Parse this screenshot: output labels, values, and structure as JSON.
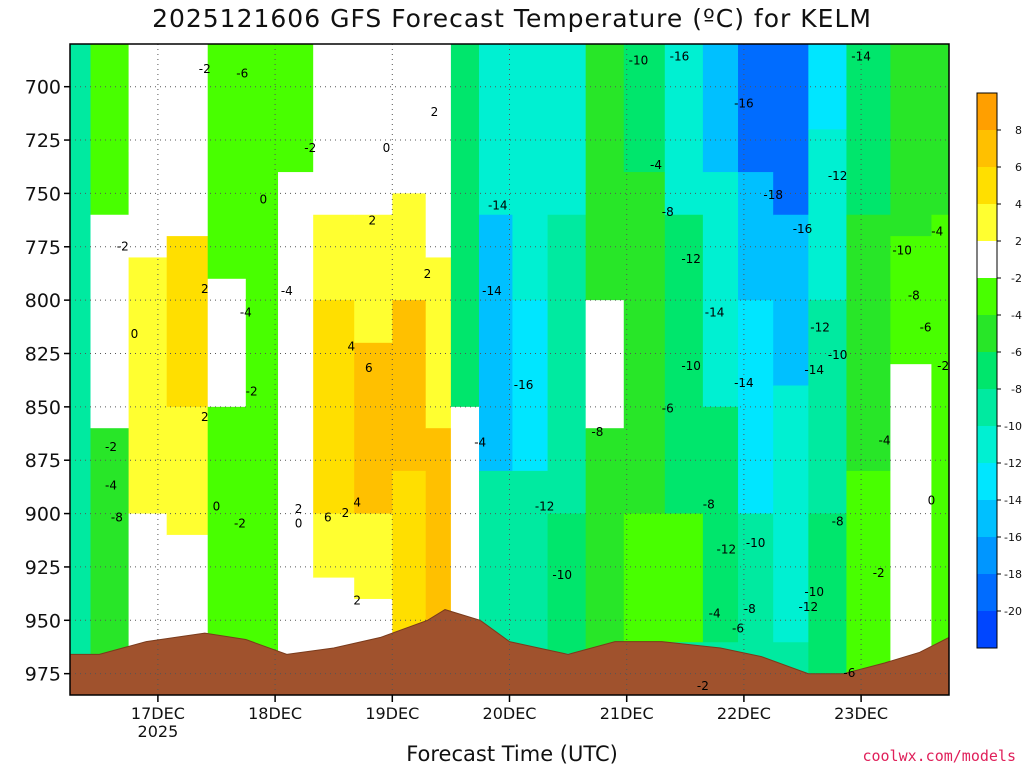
{
  "chart_data": {
    "type": "heatmap",
    "title": "2025121606 GFS Forecast Temperature (ºC) for KELM",
    "xlabel": "Forecast Time (UTC)",
    "ylabel": "Pressure (hPa)",
    "credit": "coolwx.com/models",
    "x_ticks": [
      "17DEC",
      "18DEC",
      "19DEC",
      "20DEC",
      "21DEC",
      "22DEC",
      "23DEC"
    ],
    "x_year_label": "2025",
    "x_range_days": [
      16.25,
      23.75
    ],
    "y_ticks": [
      700,
      725,
      750,
      775,
      800,
      825,
      850,
      875,
      900,
      925,
      950,
      975
    ],
    "y_range": [
      680,
      985
    ],
    "colorbar": {
      "labels": [
        "8",
        "6",
        "4",
        "2",
        "-2",
        "-4",
        "-6",
        "-8",
        "-10",
        "-12",
        "-14",
        "-16",
        "-18",
        "-20"
      ],
      "bins": [
        {
          "color": "#ff9f00"
        },
        {
          "color": "#ffc000"
        },
        {
          "color": "#ffdf00"
        },
        {
          "color": "#ffff30"
        },
        {
          "color": "#ffffff"
        },
        {
          "color": "#48ff00"
        },
        {
          "color": "#28e628"
        },
        {
          "color": "#00e66c"
        },
        {
          "color": "#00eaa0"
        },
        {
          "color": "#00f0d2"
        },
        {
          "color": "#00e6ff"
        },
        {
          "color": "#00c0ff"
        },
        {
          "color": "#0096ff"
        },
        {
          "color": "#006cff"
        },
        {
          "color": "#0046ff"
        }
      ]
    },
    "columns": [
      {
        "t": 16.25,
        "bands": [
          [
            680,
            985,
            -10
          ]
        ]
      },
      {
        "t": 16.6,
        "bands": [
          [
            680,
            760,
            -4
          ],
          [
            760,
            860,
            -1
          ],
          [
            860,
            985,
            -6
          ]
        ]
      },
      {
        "t": 16.9,
        "bands": [
          [
            680,
            730,
            -1
          ],
          [
            730,
            780,
            1
          ],
          [
            780,
            900,
            3
          ],
          [
            900,
            985,
            -2
          ]
        ]
      },
      {
        "t": 17.25,
        "bands": [
          [
            680,
            740,
            0
          ],
          [
            740,
            770,
            1
          ],
          [
            770,
            850,
            5
          ],
          [
            850,
            910,
            2
          ],
          [
            910,
            985,
            -1
          ]
        ]
      },
      {
        "t": 17.6,
        "bands": [
          [
            680,
            790,
            -3
          ],
          [
            790,
            850,
            1
          ],
          [
            850,
            985,
            -3
          ]
        ]
      },
      {
        "t": 17.9,
        "bands": [
          [
            680,
            985,
            -3
          ]
        ]
      },
      {
        "t": 18.15,
        "bands": [
          [
            680,
            740,
            -3
          ],
          [
            740,
            810,
            -1
          ],
          [
            810,
            900,
            1
          ],
          [
            900,
            985,
            -1
          ]
        ]
      },
      {
        "t": 18.5,
        "bands": [
          [
            680,
            760,
            -1
          ],
          [
            760,
            800,
            2
          ],
          [
            800,
            900,
            5
          ],
          [
            900,
            930,
            3
          ],
          [
            930,
            985,
            1
          ]
        ]
      },
      {
        "t": 18.85,
        "bands": [
          [
            680,
            720,
            -1
          ],
          [
            720,
            760,
            1
          ],
          [
            760,
            820,
            3
          ],
          [
            820,
            900,
            7
          ],
          [
            900,
            940,
            3
          ],
          [
            940,
            985,
            1
          ]
        ]
      },
      {
        "t": 19.15,
        "bands": [
          [
            680,
            750,
            -1
          ],
          [
            750,
            800,
            3
          ],
          [
            800,
            880,
            7
          ],
          [
            880,
            960,
            5
          ]
        ]
      },
      {
        "t": 19.42,
        "bands": [
          [
            680,
            780,
            -1
          ],
          [
            780,
            860,
            3
          ],
          [
            860,
            950,
            7
          ]
        ]
      },
      {
        "t": 19.58,
        "bands": [
          [
            680,
            850,
            -8
          ],
          [
            850,
            955,
            -2
          ]
        ]
      },
      {
        "t": 19.9,
        "bands": [
          [
            680,
            760,
            -12
          ],
          [
            760,
            880,
            -15
          ],
          [
            880,
            960,
            -9
          ]
        ]
      },
      {
        "t": 20.15,
        "bands": [
          [
            680,
            800,
            -11
          ],
          [
            800,
            880,
            -13
          ],
          [
            880,
            965,
            -9
          ]
        ]
      },
      {
        "t": 20.5,
        "bands": [
          [
            680,
            760,
            -11
          ],
          [
            760,
            900,
            -9
          ],
          [
            900,
            965,
            -7
          ]
        ]
      },
      {
        "t": 20.8,
        "bands": [
          [
            680,
            800,
            -5
          ],
          [
            800,
            860,
            0
          ],
          [
            860,
            985,
            -5
          ]
        ]
      },
      {
        "t": 21.15,
        "bands": [
          [
            680,
            740,
            -7
          ],
          [
            740,
            900,
            -5
          ],
          [
            900,
            960,
            -3
          ]
        ]
      },
      {
        "t": 21.5,
        "bands": [
          [
            680,
            760,
            -11
          ],
          [
            760,
            900,
            -7
          ],
          [
            900,
            960,
            -3
          ]
        ]
      },
      {
        "t": 21.8,
        "bands": [
          [
            680,
            740,
            -15
          ],
          [
            740,
            850,
            -11
          ],
          [
            850,
            960,
            -7
          ]
        ]
      },
      {
        "t": 22.1,
        "bands": [
          [
            680,
            740,
            -19
          ],
          [
            740,
            800,
            -15
          ],
          [
            800,
            900,
            -13
          ],
          [
            900,
            970,
            -9
          ]
        ]
      },
      {
        "t": 22.4,
        "bands": [
          [
            680,
            760,
            -19
          ],
          [
            760,
            840,
            -15
          ],
          [
            840,
            960,
            -11
          ]
        ]
      },
      {
        "t": 22.7,
        "bands": [
          [
            680,
            720,
            -13
          ],
          [
            720,
            800,
            -11
          ],
          [
            800,
            900,
            -9
          ],
          [
            900,
            980,
            -7
          ]
        ]
      },
      {
        "t": 23.05,
        "bands": [
          [
            680,
            760,
            -7
          ],
          [
            760,
            880,
            -5
          ],
          [
            880,
            975,
            -3
          ]
        ]
      },
      {
        "t": 23.45,
        "bands": [
          [
            680,
            770,
            -5
          ],
          [
            770,
            830,
            -3
          ],
          [
            830,
            970,
            -1
          ]
        ]
      },
      {
        "t": 23.75,
        "bands": [
          [
            680,
            760,
            -5
          ],
          [
            760,
            985,
            -3
          ]
        ]
      }
    ],
    "surface_pressure": [
      {
        "t": 16.25,
        "p": 966
      },
      {
        "t": 16.5,
        "p": 966
      },
      {
        "t": 16.9,
        "p": 960
      },
      {
        "t": 17.4,
        "p": 956
      },
      {
        "t": 17.75,
        "p": 959
      },
      {
        "t": 18.1,
        "p": 966
      },
      {
        "t": 18.5,
        "p": 963
      },
      {
        "t": 18.9,
        "p": 958
      },
      {
        "t": 19.3,
        "p": 950
      },
      {
        "t": 19.45,
        "p": 945
      },
      {
        "t": 19.75,
        "p": 950
      },
      {
        "t": 20.0,
        "p": 960
      },
      {
        "t": 20.5,
        "p": 966
      },
      {
        "t": 20.9,
        "p": 960
      },
      {
        "t": 21.3,
        "p": 960
      },
      {
        "t": 21.8,
        "p": 963
      },
      {
        "t": 22.15,
        "p": 967
      },
      {
        "t": 22.55,
        "p": 975
      },
      {
        "t": 22.85,
        "p": 975
      },
      {
        "t": 23.2,
        "p": 970
      },
      {
        "t": 23.5,
        "p": 965
      },
      {
        "t": 23.75,
        "p": 958
      }
    ],
    "contour_labels": [
      {
        "t": 17.4,
        "p": 692,
        "text": "-2"
      },
      {
        "t": 17.72,
        "p": 694,
        "text": "-6"
      },
      {
        "t": 17.9,
        "p": 753,
        "text": "0"
      },
      {
        "t": 18.3,
        "p": 729,
        "text": "-2"
      },
      {
        "t": 18.1,
        "p": 796,
        "text": "-4"
      },
      {
        "t": 17.75,
        "p": 806,
        "text": "-4"
      },
      {
        "t": 16.7,
        "p": 775,
        "text": "-2"
      },
      {
        "t": 16.8,
        "p": 816,
        "text": "0"
      },
      {
        "t": 17.4,
        "p": 795,
        "text": "2"
      },
      {
        "t": 17.4,
        "p": 855,
        "text": "2"
      },
      {
        "t": 17.8,
        "p": 843,
        "text": "-2"
      },
      {
        "t": 16.6,
        "p": 869,
        "text": "-2"
      },
      {
        "t": 16.6,
        "p": 887,
        "text": "-4"
      },
      {
        "t": 16.65,
        "p": 902,
        "text": "-8"
      },
      {
        "t": 17.5,
        "p": 897,
        "text": "0"
      },
      {
        "t": 17.7,
        "p": 905,
        "text": "-2"
      },
      {
        "t": 18.2,
        "p": 898,
        "text": "2"
      },
      {
        "t": 18.2,
        "p": 905,
        "text": "0"
      },
      {
        "t": 18.95,
        "p": 729,
        "text": "0"
      },
      {
        "t": 18.83,
        "p": 763,
        "text": "2"
      },
      {
        "t": 19.3,
        "p": 788,
        "text": "2"
      },
      {
        "t": 19.36,
        "p": 712,
        "text": "2"
      },
      {
        "t": 18.65,
        "p": 822,
        "text": "4"
      },
      {
        "t": 18.8,
        "p": 832,
        "text": "6"
      },
      {
        "t": 18.7,
        "p": 895,
        "text": "4"
      },
      {
        "t": 18.45,
        "p": 902,
        "text": "6"
      },
      {
        "t": 18.6,
        "p": 900,
        "text": "2"
      },
      {
        "t": 18.7,
        "p": 941,
        "text": "2"
      },
      {
        "t": 19.75,
        "p": 867,
        "text": "-4"
      },
      {
        "t": 19.9,
        "p": 756,
        "text": "-14"
      },
      {
        "t": 19.85,
        "p": 796,
        "text": "-14"
      },
      {
        "t": 20.12,
        "p": 840,
        "text": "-16"
      },
      {
        "t": 20.3,
        "p": 897,
        "text": "-12"
      },
      {
        "t": 20.45,
        "p": 929,
        "text": "-10"
      },
      {
        "t": 20.75,
        "p": 862,
        "text": "-8"
      },
      {
        "t": 21.1,
        "p": 688,
        "text": "-10"
      },
      {
        "t": 21.45,
        "p": 686,
        "text": "-16"
      },
      {
        "t": 21.25,
        "p": 737,
        "text": "-4"
      },
      {
        "t": 21.35,
        "p": 759,
        "text": "-8"
      },
      {
        "t": 21.55,
        "p": 781,
        "text": "-12"
      },
      {
        "t": 21.75,
        "p": 806,
        "text": "-14"
      },
      {
        "t": 21.55,
        "p": 831,
        "text": "-10"
      },
      {
        "t": 21.35,
        "p": 851,
        "text": "-6"
      },
      {
        "t": 21.7,
        "p": 896,
        "text": "-8"
      },
      {
        "t": 21.85,
        "p": 917,
        "text": "-12"
      },
      {
        "t": 21.75,
        "p": 947,
        "text": "-4"
      },
      {
        "t": 21.95,
        "p": 954,
        "text": "-6"
      },
      {
        "t": 21.65,
        "p": 981,
        "text": "-2"
      },
      {
        "t": 22.0,
        "p": 708,
        "text": "-16"
      },
      {
        "t": 22.25,
        "p": 751,
        "text": "-18"
      },
      {
        "t": 22.5,
        "p": 767,
        "text": "-16"
      },
      {
        "t": 22.8,
        "p": 742,
        "text": "-12"
      },
      {
        "t": 22.65,
        "p": 813,
        "text": "-12"
      },
      {
        "t": 22.8,
        "p": 826,
        "text": "-10"
      },
      {
        "t": 22.6,
        "p": 833,
        "text": "-14"
      },
      {
        "t": 22.0,
        "p": 839,
        "text": "-14"
      },
      {
        "t": 22.1,
        "p": 914,
        "text": "-10"
      },
      {
        "t": 22.8,
        "p": 904,
        "text": "-8"
      },
      {
        "t": 22.05,
        "p": 945,
        "text": "-8"
      },
      {
        "t": 22.6,
        "p": 937,
        "text": "-10"
      },
      {
        "t": 22.55,
        "p": 944,
        "text": "-12"
      },
      {
        "t": 22.9,
        "p": 975,
        "text": "-6"
      },
      {
        "t": 23.15,
        "p": 928,
        "text": "-2"
      },
      {
        "t": 23.2,
        "p": 866,
        "text": "-4"
      },
      {
        "t": 23.35,
        "p": 777,
        "text": "-10"
      },
      {
        "t": 23.45,
        "p": 798,
        "text": "-8"
      },
      {
        "t": 23.55,
        "p": 813,
        "text": "-6"
      },
      {
        "t": 23.65,
        "p": 768,
        "text": "-4"
      },
      {
        "t": 23.7,
        "p": 831,
        "text": "-2"
      },
      {
        "t": 23.6,
        "p": 894,
        "text": "0"
      },
      {
        "t": 23.0,
        "p": 686,
        "text": "-14"
      }
    ]
  }
}
